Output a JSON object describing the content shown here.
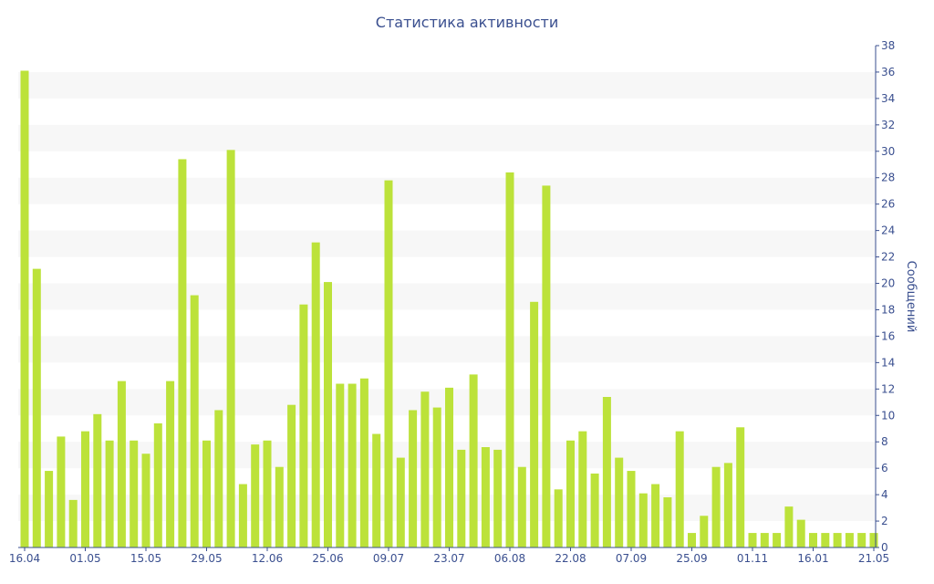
{
  "chart_data": {
    "type": "bar",
    "title": "Статистика активности",
    "xlabel": "",
    "ylabel": "Сообщений",
    "ylim": [
      0,
      38
    ],
    "y_ticks": [
      0,
      2,
      4,
      6,
      8,
      10,
      12,
      14,
      16,
      18,
      20,
      22,
      24,
      26,
      28,
      30,
      32,
      34,
      36,
      38
    ],
    "y_axis_side": "right",
    "grid": "alternating horizontal bands",
    "legend": "none",
    "x_tick_labels": [
      "16.04",
      "01.05",
      "15.05",
      "29.05",
      "12.06",
      "25.06",
      "09.07",
      "23.07",
      "06.08",
      "22.08",
      "07.09",
      "25.09",
      "01.11",
      "16.01",
      "21.05"
    ],
    "x_tick_bar_index": [
      0,
      5,
      10,
      15,
      20,
      25,
      30,
      35,
      40,
      45,
      50,
      55,
      60,
      65,
      70
    ],
    "values": [
      36.1,
      21.1,
      5.8,
      8.4,
      3.6,
      8.8,
      10.1,
      8.1,
      12.6,
      8.1,
      7.1,
      9.4,
      12.6,
      29.4,
      19.1,
      8.1,
      10.4,
      30.1,
      4.8,
      7.8,
      8.1,
      6.1,
      10.8,
      18.4,
      23.1,
      20.1,
      12.4,
      12.4,
      12.8,
      8.6,
      27.8,
      6.8,
      10.4,
      11.8,
      10.6,
      12.1,
      7.4,
      13.1,
      7.6,
      7.4,
      28.4,
      6.1,
      18.6,
      27.4,
      4.4,
      8.1,
      8.8,
      5.6,
      11.4,
      6.8,
      5.8,
      4.1,
      4.8,
      3.8,
      8.8,
      1.1,
      2.4,
      6.1,
      6.4,
      9.1,
      1.1,
      1.1,
      1.1,
      3.1,
      2.1,
      1.1,
      1.1,
      1.1,
      1.1,
      1.1,
      1.1
    ],
    "colors": {
      "bar": "#bce23a",
      "band": "#f7f7f7",
      "axis": "#3a4f8f",
      "text": "#3a4f8f"
    }
  }
}
